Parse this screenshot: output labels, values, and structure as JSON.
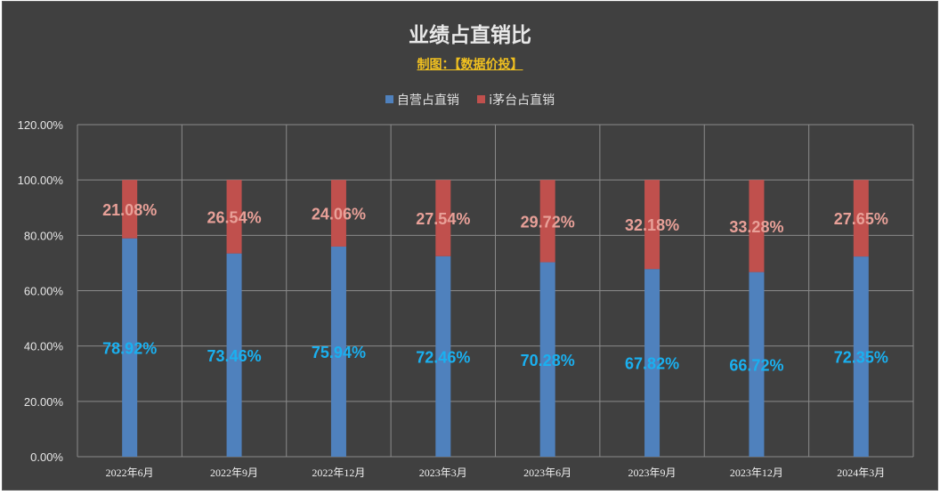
{
  "chart_data": {
    "type": "bar",
    "stacked": true,
    "title": "业绩占直销比",
    "subtitle": "制图：【数据价投】",
    "categories": [
      "2022年6月",
      "2022年9月",
      "2022年12月",
      "2023年3月",
      "2023年6月",
      "2023年9月",
      "2023年12月",
      "2024年3月"
    ],
    "series": [
      {
        "name": "自营占直销",
        "color": "#4f81bd",
        "values": [
          78.92,
          73.46,
          75.94,
          72.46,
          70.28,
          67.82,
          66.72,
          72.35
        ],
        "labels": [
          "78.92%",
          "73.46%",
          "75.94%",
          "72.46%",
          "70.28%",
          "67.82%",
          "66.72%",
          "72.35%"
        ],
        "label_color": "#1ab0f0"
      },
      {
        "name": "i茅台占直销",
        "color": "#c0504d",
        "values": [
          21.08,
          26.54,
          24.06,
          27.54,
          29.72,
          32.18,
          33.28,
          27.65
        ],
        "labels": [
          "21.08%",
          "26.54%",
          "24.06%",
          "27.54%",
          "29.72%",
          "32.18%",
          "33.28%",
          "27.65%"
        ],
        "label_color": "#e8a098"
      }
    ],
    "y_ticks": [
      "0.00%",
      "20.00%",
      "40.00%",
      "60.00%",
      "80.00%",
      "100.00%",
      "120.00%"
    ],
    "ylim": [
      0,
      120
    ],
    "xlabel": "",
    "ylabel": "",
    "grid": true,
    "legend_position": "top"
  }
}
